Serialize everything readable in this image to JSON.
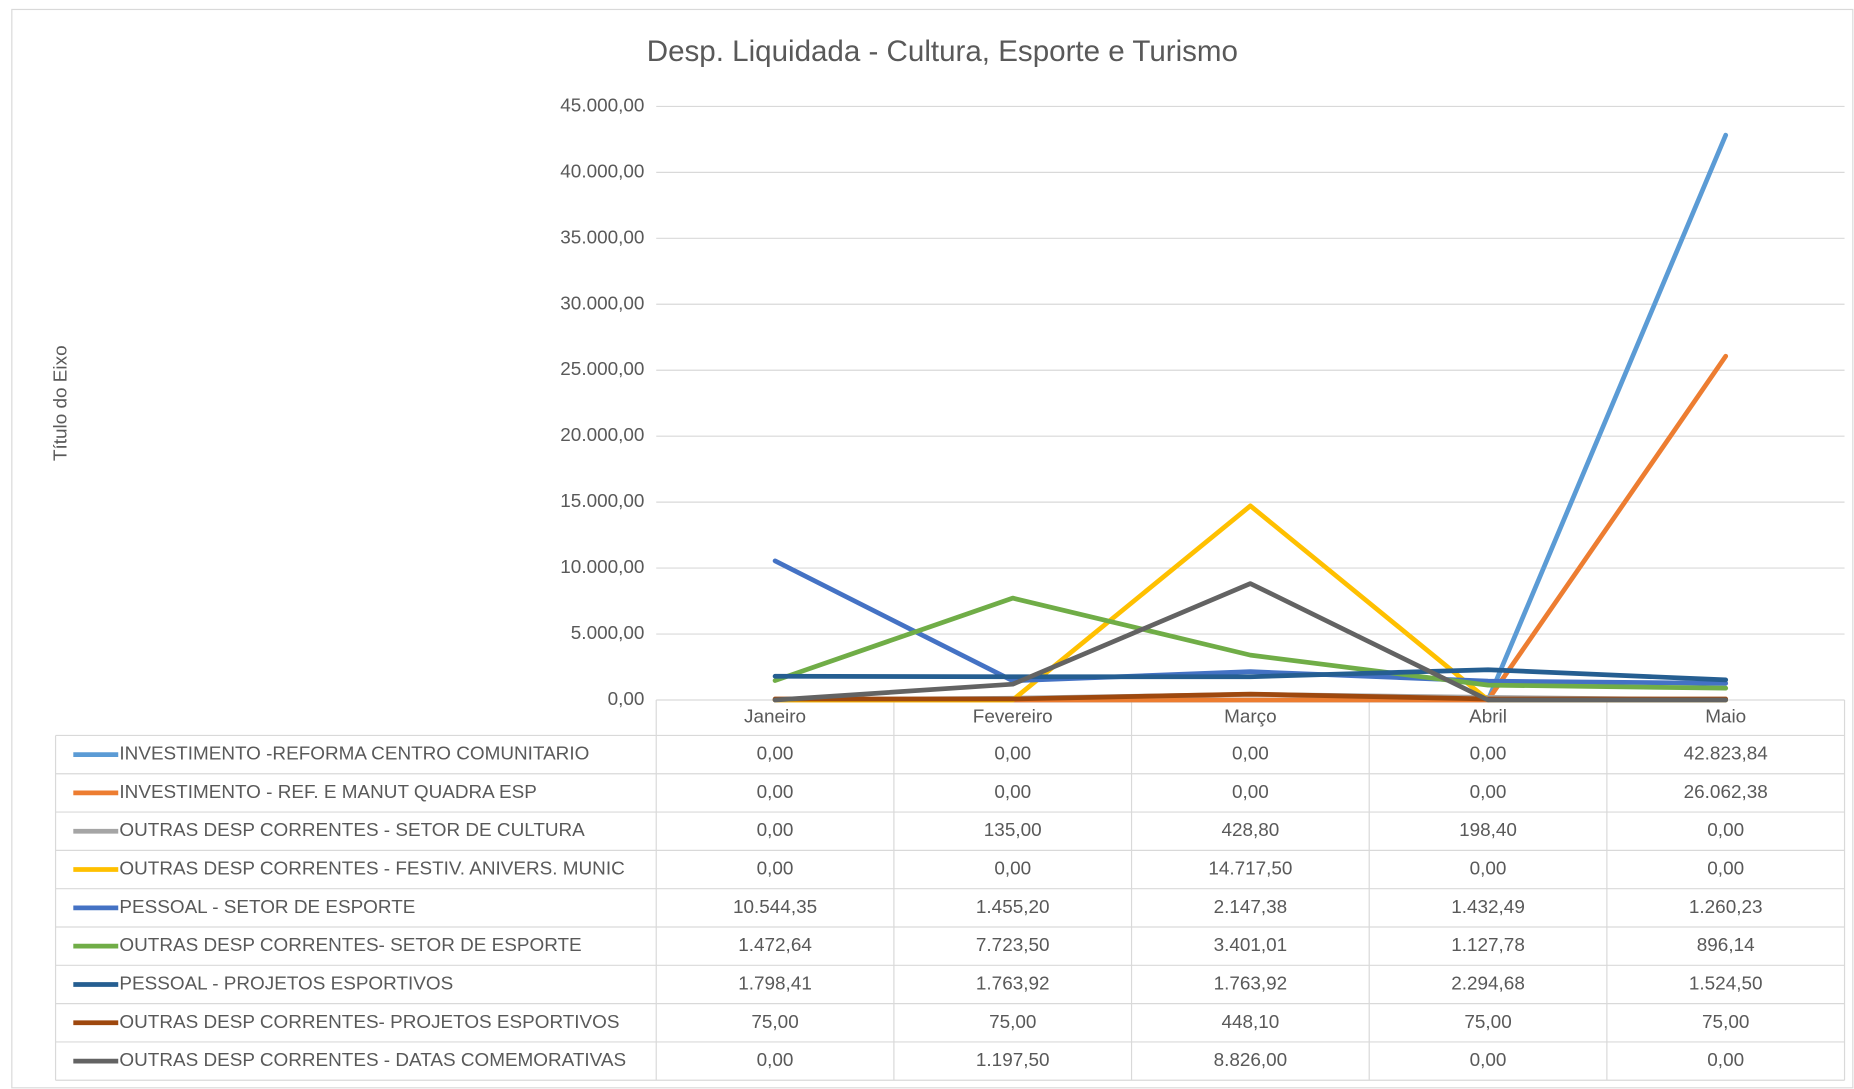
{
  "chart_data": {
    "type": "line",
    "title": "Desp. Liquidada - Cultura, Esporte e Turismo",
    "y_label": "Título do Eixo",
    "categories": [
      "Janeiro",
      "Fevereiro",
      "Março",
      "Abril",
      "Maio"
    ],
    "ylim": [
      0,
      45000
    ],
    "yticks": [
      {
        "value": 0,
        "label": "0,00"
      },
      {
        "value": 5000,
        "label": "5.000,00"
      },
      {
        "value": 10000,
        "label": "10.000,00"
      },
      {
        "value": 15000,
        "label": "15.000,00"
      },
      {
        "value": 20000,
        "label": "20.000,00"
      },
      {
        "value": 25000,
        "label": "25.000,00"
      },
      {
        "value": 30000,
        "label": "30.000,00"
      },
      {
        "value": 35000,
        "label": "35.000,00"
      },
      {
        "value": 40000,
        "label": "40.000,00"
      },
      {
        "value": 45000,
        "label": "45.000,00"
      }
    ],
    "grid": true,
    "series": [
      {
        "name": "INVESTIMENTO -REFORMA CENTRO COMUNITARIO",
        "color": "#5b9bd5",
        "values": [
          0,
          0,
          0,
          0,
          42823.84
        ],
        "value_labels": [
          "0,00",
          "0,00",
          "0,00",
          "0,00",
          "42.823,84"
        ]
      },
      {
        "name": "INVESTIMENTO - REF. E MANUT QUADRA ESP",
        "color": "#ed7d31",
        "values": [
          0,
          0,
          0,
          0,
          26062.38
        ],
        "value_labels": [
          "0,00",
          "0,00",
          "0,00",
          "0,00",
          "26.062,38"
        ]
      },
      {
        "name": "OUTRAS DESP CORRENTES - SETOR DE CULTURA",
        "color": "#a5a5a5",
        "values": [
          0,
          135,
          428.8,
          198.4,
          0
        ],
        "value_labels": [
          "0,00",
          "135,00",
          "428,80",
          "198,40",
          "0,00"
        ]
      },
      {
        "name": "OUTRAS DESP CORRENTES - FESTIV. ANIVERS. MUNIC",
        "color": "#ffc000",
        "values": [
          0,
          0,
          14717.5,
          0,
          0
        ],
        "value_labels": [
          "0,00",
          "0,00",
          "14.717,50",
          "0,00",
          "0,00"
        ]
      },
      {
        "name": "PESSOAL - SETOR DE ESPORTE",
        "color": "#4472c4",
        "values": [
          10544.35,
          1455.2,
          2147.38,
          1432.49,
          1260.23
        ],
        "value_labels": [
          "10.544,35",
          "1.455,20",
          "2.147,38",
          "1.432,49",
          "1.260,23"
        ]
      },
      {
        "name": "OUTRAS DESP CORRENTES- SETOR DE ESPORTE",
        "color": "#70ad47",
        "values": [
          1472.64,
          7723.5,
          3401.01,
          1127.78,
          896.14
        ],
        "value_labels": [
          "1.472,64",
          "7.723,50",
          "3.401,01",
          "1.127,78",
          "896,14"
        ]
      },
      {
        "name": "PESSOAL - PROJETOS ESPORTIVOS",
        "color": "#255e91",
        "values": [
          1798.41,
          1763.92,
          1763.92,
          2294.68,
          1524.5
        ],
        "value_labels": [
          "1.798,41",
          "1.763,92",
          "1.763,92",
          "2.294,68",
          "1.524,50"
        ]
      },
      {
        "name": "OUTRAS DESP CORRENTES- PROJETOS ESPORTIVOS",
        "color": "#9e480e",
        "values": [
          75,
          75,
          448.1,
          75,
          75
        ],
        "value_labels": [
          "75,00",
          "75,00",
          "448,10",
          "75,00",
          "75,00"
        ]
      },
      {
        "name": "OUTRAS DESP CORRENTES - DATAS COMEMORATIVAS",
        "color": "#636363",
        "values": [
          0,
          1197.5,
          8826,
          0,
          0
        ],
        "value_labels": [
          "0,00",
          "1.197,50",
          "8.826,00",
          "0,00",
          "0,00"
        ]
      }
    ]
  }
}
